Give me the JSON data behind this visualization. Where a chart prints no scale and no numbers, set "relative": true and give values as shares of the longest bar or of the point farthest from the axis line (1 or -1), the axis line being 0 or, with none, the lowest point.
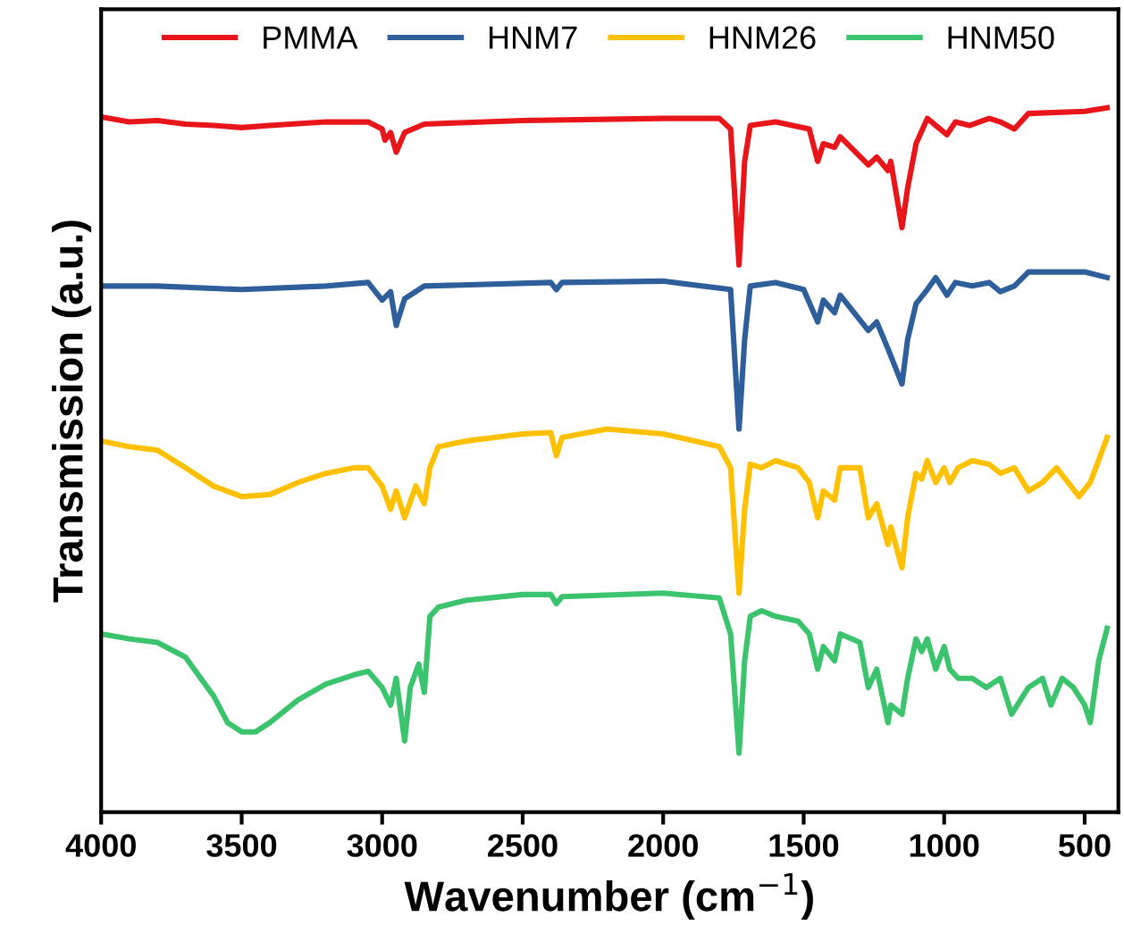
{
  "chart_data": {
    "type": "line",
    "relative": true,
    "xlabel": "Wavenumber (cm$^{−1}$)",
    "ylabel": "Transmission (a.u.)",
    "xlim": [
      4000,
      380
    ],
    "xticks": [
      4000,
      3500,
      3000,
      2500,
      2000,
      1500,
      1000,
      500
    ],
    "legend": "top",
    "grid": false,
    "marker": "none",
    "line_style": "solid",
    "tick_labels": "x",
    "series": [
      {
        "name": "PMMA",
        "color": "#e8161b",
        "x": [
          4000,
          3900,
          3800,
          3700,
          3600,
          3500,
          3400,
          3200,
          3050,
          3000,
          2990,
          2970,
          2950,
          2920,
          2850,
          2500,
          2000,
          1800,
          1760,
          1730,
          1710,
          1690,
          1600,
          1480,
          1450,
          1430,
          1390,
          1370,
          1270,
          1240,
          1200,
          1190,
          1150,
          1130,
          1100,
          1060,
          990,
          960,
          910,
          840,
          800,
          750,
          700,
          500,
          420
        ],
        "values": [
          0.987,
          0.98,
          0.982,
          0.977,
          0.975,
          0.972,
          0.975,
          0.98,
          0.98,
          0.97,
          0.954,
          0.965,
          0.937,
          0.965,
          0.977,
          0.982,
          0.985,
          0.985,
          0.97,
          0.777,
          0.924,
          0.975,
          0.98,
          0.97,
          0.924,
          0.949,
          0.944,
          0.959,
          0.919,
          0.93,
          0.911,
          0.924,
          0.83,
          0.886,
          0.949,
          0.985,
          0.962,
          0.98,
          0.975,
          0.985,
          0.98,
          0.97,
          0.992,
          0.995,
          1.0
        ]
      },
      {
        "name": "HNM7",
        "color": "#2e5f9b",
        "x": [
          4000,
          3800,
          3500,
          3200,
          3050,
          3000,
          2970,
          2950,
          2920,
          2850,
          2400,
          2380,
          2360,
          2000,
          1760,
          1730,
          1710,
          1690,
          1600,
          1500,
          1450,
          1430,
          1390,
          1370,
          1270,
          1240,
          1200,
          1150,
          1130,
          1100,
          1060,
          1030,
          990,
          960,
          900,
          840,
          800,
          750,
          700,
          500,
          420
        ],
        "values": [
          0.747,
          0.747,
          0.742,
          0.747,
          0.752,
          0.727,
          0.739,
          0.691,
          0.729,
          0.747,
          0.752,
          0.742,
          0.752,
          0.754,
          0.742,
          0.544,
          0.671,
          0.747,
          0.752,
          0.742,
          0.696,
          0.727,
          0.709,
          0.734,
          0.684,
          0.696,
          0.658,
          0.608,
          0.671,
          0.722,
          0.742,
          0.759,
          0.734,
          0.752,
          0.747,
          0.752,
          0.739,
          0.747,
          0.767,
          0.767,
          0.759
        ]
      },
      {
        "name": "HNM26",
        "color": "#ffc000",
        "x": [
          4000,
          3900,
          3800,
          3700,
          3600,
          3500,
          3400,
          3300,
          3200,
          3100,
          3050,
          3000,
          2970,
          2950,
          2920,
          2880,
          2850,
          2830,
          2800,
          2700,
          2500,
          2400,
          2380,
          2360,
          2200,
          2000,
          1800,
          1760,
          1730,
          1710,
          1690,
          1650,
          1600,
          1520,
          1480,
          1450,
          1430,
          1390,
          1370,
          1300,
          1270,
          1240,
          1200,
          1190,
          1150,
          1130,
          1100,
          1080,
          1060,
          1030,
          1000,
          980,
          950,
          900,
          840,
          800,
          750,
          700,
          650,
          600,
          520,
          480,
          420
        ],
        "values": [
          0.527,
          0.519,
          0.514,
          0.489,
          0.463,
          0.448,
          0.451,
          0.468,
          0.481,
          0.489,
          0.489,
          0.463,
          0.43,
          0.456,
          0.418,
          0.463,
          0.438,
          0.489,
          0.519,
          0.527,
          0.537,
          0.539,
          0.506,
          0.532,
          0.544,
          0.537,
          0.519,
          0.489,
          0.311,
          0.43,
          0.494,
          0.489,
          0.499,
          0.489,
          0.468,
          0.418,
          0.456,
          0.443,
          0.489,
          0.489,
          0.418,
          0.438,
          0.38,
          0.405,
          0.347,
          0.418,
          0.481,
          0.473,
          0.499,
          0.468,
          0.489,
          0.468,
          0.489,
          0.499,
          0.494,
          0.481,
          0.489,
          0.456,
          0.468,
          0.489,
          0.448,
          0.468,
          0.532
        ]
      },
      {
        "name": "HNM50",
        "color": "#3cc36e",
        "x": [
          4000,
          3900,
          3800,
          3700,
          3600,
          3550,
          3500,
          3450,
          3400,
          3300,
          3200,
          3100,
          3050,
          3000,
          2970,
          2950,
          2920,
          2900,
          2870,
          2850,
          2830,
          2800,
          2700,
          2500,
          2400,
          2380,
          2360,
          2000,
          1800,
          1760,
          1730,
          1710,
          1690,
          1650,
          1600,
          1520,
          1480,
          1450,
          1430,
          1390,
          1370,
          1300,
          1270,
          1240,
          1200,
          1190,
          1150,
          1130,
          1100,
          1080,
          1060,
          1030,
          1000,
          980,
          950,
          900,
          850,
          800,
          760,
          700,
          650,
          620,
          580,
          540,
          500,
          480,
          450,
          420
        ],
        "values": [
          0.253,
          0.246,
          0.241,
          0.22,
          0.165,
          0.127,
          0.114,
          0.114,
          0.127,
          0.159,
          0.182,
          0.195,
          0.2,
          0.177,
          0.152,
          0.19,
          0.101,
          0.177,
          0.21,
          0.17,
          0.278,
          0.291,
          0.301,
          0.309,
          0.309,
          0.296,
          0.306,
          0.311,
          0.304,
          0.253,
          0.084,
          0.215,
          0.278,
          0.286,
          0.278,
          0.271,
          0.253,
          0.203,
          0.235,
          0.215,
          0.253,
          0.241,
          0.177,
          0.203,
          0.127,
          0.152,
          0.139,
          0.19,
          0.246,
          0.228,
          0.246,
          0.203,
          0.235,
          0.203,
          0.19,
          0.19,
          0.177,
          0.19,
          0.139,
          0.177,
          0.19,
          0.152,
          0.19,
          0.177,
          0.152,
          0.127,
          0.215,
          0.261
        ]
      }
    ]
  }
}
